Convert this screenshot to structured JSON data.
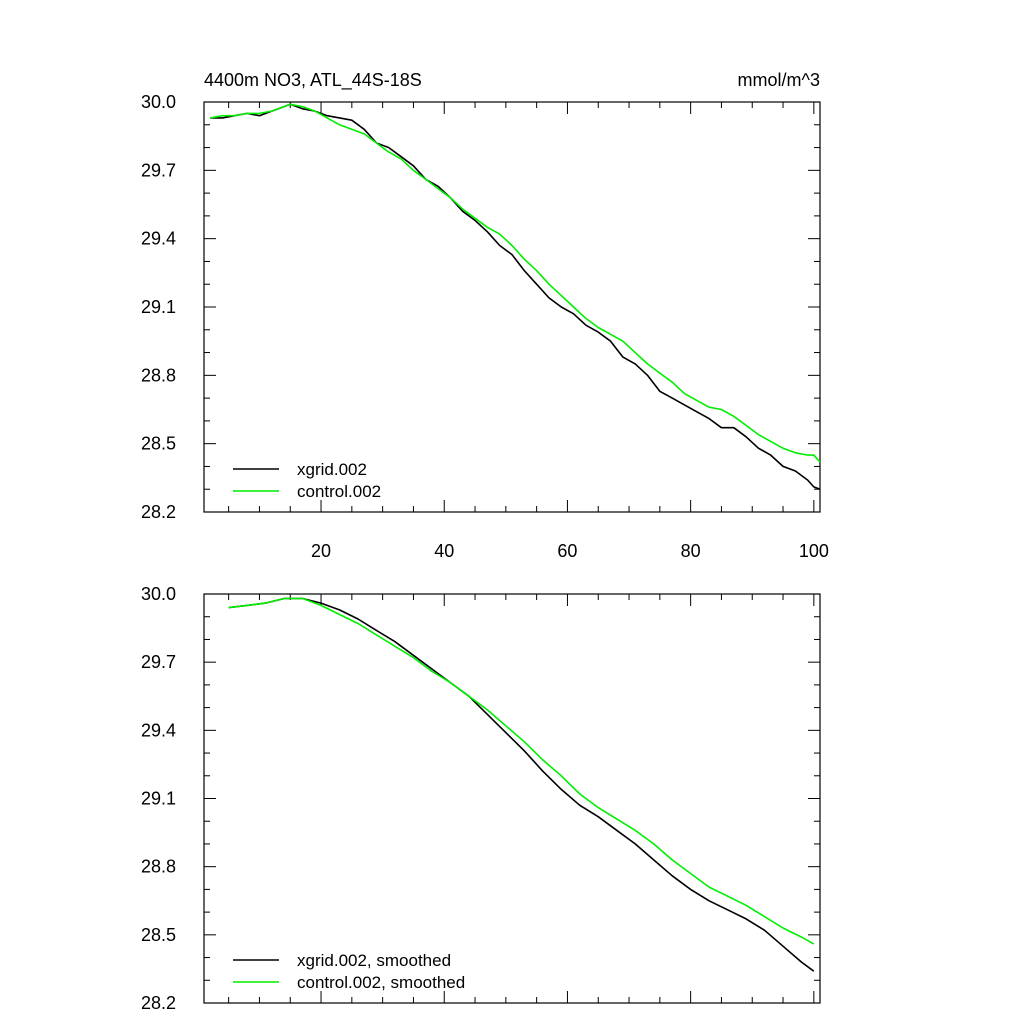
{
  "header": {
    "title": "4400m NO3, ATL_44S-18S",
    "units": "mmol/m^3"
  },
  "colors": {
    "xgrid": "#000000",
    "control": "#00ee00"
  },
  "chart_data": [
    {
      "type": "line",
      "xlim": [
        1,
        101
      ],
      "ylim": [
        28.2,
        30.0
      ],
      "y_ticks": [
        "30.0",
        "29.7",
        "29.4",
        "29.1",
        "28.8",
        "28.5",
        "28.2"
      ],
      "x_ticks": [
        "20",
        "40",
        "60",
        "80",
        "100"
      ],
      "legend_position": "bottom-left",
      "series": [
        {
          "name": "xgrid.002",
          "color": "#000000",
          "points": [
            [
              2,
              29.93
            ],
            [
              4,
              29.93
            ],
            [
              6,
              29.94
            ],
            [
              8,
              29.95
            ],
            [
              10,
              29.94
            ],
            [
              12,
              29.96
            ],
            [
              14,
              29.98
            ],
            [
              15,
              29.99
            ],
            [
              17,
              29.97
            ],
            [
              19,
              29.96
            ],
            [
              21,
              29.94
            ],
            [
              23,
              29.93
            ],
            [
              25,
              29.92
            ],
            [
              27,
              29.88
            ],
            [
              29,
              29.82
            ],
            [
              31,
              29.8
            ],
            [
              33,
              29.76
            ],
            [
              35,
              29.72
            ],
            [
              37,
              29.66
            ],
            [
              39,
              29.63
            ],
            [
              41,
              29.58
            ],
            [
              43,
              29.52
            ],
            [
              45,
              29.48
            ],
            [
              47,
              29.43
            ],
            [
              49,
              29.37
            ],
            [
              51,
              29.33
            ],
            [
              53,
              29.26
            ],
            [
              55,
              29.2
            ],
            [
              57,
              29.14
            ],
            [
              59,
              29.1
            ],
            [
              61,
              29.07
            ],
            [
              63,
              29.02
            ],
            [
              65,
              28.99
            ],
            [
              67,
              28.95
            ],
            [
              69,
              28.88
            ],
            [
              71,
              28.85
            ],
            [
              73,
              28.8
            ],
            [
              75,
              28.73
            ],
            [
              77,
              28.7
            ],
            [
              79,
              28.67
            ],
            [
              81,
              28.64
            ],
            [
              83,
              28.61
            ],
            [
              85,
              28.57
            ],
            [
              87,
              28.57
            ],
            [
              89,
              28.53
            ],
            [
              91,
              28.48
            ],
            [
              93,
              28.45
            ],
            [
              95,
              28.4
            ],
            [
              97,
              28.38
            ],
            [
              99,
              28.34
            ],
            [
              100,
              28.31
            ],
            [
              101,
              28.3
            ]
          ]
        },
        {
          "name": "control.002",
          "color": "#00ee00",
          "points": [
            [
              2,
              29.93
            ],
            [
              4,
              29.94
            ],
            [
              6,
              29.94
            ],
            [
              8,
              29.95
            ],
            [
              10,
              29.95
            ],
            [
              12,
              29.96
            ],
            [
              14,
              29.98
            ],
            [
              15,
              29.99
            ],
            [
              17,
              29.98
            ],
            [
              19,
              29.96
            ],
            [
              21,
              29.93
            ],
            [
              23,
              29.9
            ],
            [
              25,
              29.88
            ],
            [
              27,
              29.86
            ],
            [
              29,
              29.82
            ],
            [
              31,
              29.78
            ],
            [
              33,
              29.75
            ],
            [
              35,
              29.7
            ],
            [
              37,
              29.66
            ],
            [
              39,
              29.62
            ],
            [
              41,
              29.58
            ],
            [
              43,
              29.53
            ],
            [
              45,
              29.49
            ],
            [
              47,
              29.45
            ],
            [
              49,
              29.42
            ],
            [
              51,
              29.37
            ],
            [
              53,
              29.31
            ],
            [
              55,
              29.26
            ],
            [
              57,
              29.2
            ],
            [
              59,
              29.15
            ],
            [
              61,
              29.1
            ],
            [
              63,
              29.05
            ],
            [
              65,
              29.01
            ],
            [
              67,
              28.98
            ],
            [
              69,
              28.95
            ],
            [
              71,
              28.9
            ],
            [
              73,
              28.85
            ],
            [
              75,
              28.81
            ],
            [
              77,
              28.77
            ],
            [
              79,
              28.72
            ],
            [
              81,
              28.69
            ],
            [
              83,
              28.66
            ],
            [
              85,
              28.65
            ],
            [
              87,
              28.62
            ],
            [
              89,
              28.58
            ],
            [
              91,
              28.54
            ],
            [
              93,
              28.51
            ],
            [
              95,
              28.48
            ],
            [
              97,
              28.46
            ],
            [
              99,
              28.45
            ],
            [
              100,
              28.45
            ],
            [
              101,
              28.42
            ]
          ]
        }
      ]
    },
    {
      "type": "line",
      "xlim": [
        1,
        101
      ],
      "ylim": [
        28.2,
        30.0
      ],
      "y_ticks": [
        "30.0",
        "29.7",
        "29.4",
        "29.1",
        "28.8",
        "28.5",
        "28.2"
      ],
      "x_ticks": [],
      "legend_position": "bottom-left",
      "series": [
        {
          "name": "xgrid.002, smoothed",
          "color": "#000000",
          "points": [
            [
              5,
              29.94
            ],
            [
              8,
              29.95
            ],
            [
              11,
              29.96
            ],
            [
              14,
              29.98
            ],
            [
              17,
              29.98
            ],
            [
              20,
              29.96
            ],
            [
              23,
              29.93
            ],
            [
              26,
              29.89
            ],
            [
              29,
              29.84
            ],
            [
              32,
              29.79
            ],
            [
              35,
              29.73
            ],
            [
              38,
              29.67
            ],
            [
              41,
              29.61
            ],
            [
              44,
              29.55
            ],
            [
              47,
              29.47
            ],
            [
              50,
              29.39
            ],
            [
              53,
              29.31
            ],
            [
              56,
              29.22
            ],
            [
              59,
              29.14
            ],
            [
              62,
              29.07
            ],
            [
              65,
              29.02
            ],
            [
              68,
              28.96
            ],
            [
              71,
              28.9
            ],
            [
              74,
              28.83
            ],
            [
              77,
              28.76
            ],
            [
              80,
              28.7
            ],
            [
              83,
              28.65
            ],
            [
              86,
              28.61
            ],
            [
              89,
              28.57
            ],
            [
              92,
              28.52
            ],
            [
              95,
              28.45
            ],
            [
              98,
              28.38
            ],
            [
              100,
              28.34
            ]
          ]
        },
        {
          "name": "control.002, smoothed",
          "color": "#00ee00",
          "points": [
            [
              5,
              29.94
            ],
            [
              8,
              29.95
            ],
            [
              11,
              29.96
            ],
            [
              14,
              29.98
            ],
            [
              17,
              29.98
            ],
            [
              20,
              29.95
            ],
            [
              23,
              29.91
            ],
            [
              26,
              29.87
            ],
            [
              29,
              29.82
            ],
            [
              32,
              29.77
            ],
            [
              35,
              29.72
            ],
            [
              38,
              29.66
            ],
            [
              41,
              29.61
            ],
            [
              44,
              29.55
            ],
            [
              47,
              29.49
            ],
            [
              50,
              29.42
            ],
            [
              53,
              29.35
            ],
            [
              56,
              29.27
            ],
            [
              59,
              29.2
            ],
            [
              62,
              29.12
            ],
            [
              65,
              29.06
            ],
            [
              68,
              29.01
            ],
            [
              71,
              28.96
            ],
            [
              74,
              28.9
            ],
            [
              77,
              28.83
            ],
            [
              80,
              28.77
            ],
            [
              83,
              28.71
            ],
            [
              86,
              28.67
            ],
            [
              89,
              28.63
            ],
            [
              92,
              28.58
            ],
            [
              95,
              28.53
            ],
            [
              98,
              28.49
            ],
            [
              100,
              28.46
            ]
          ]
        }
      ]
    }
  ]
}
